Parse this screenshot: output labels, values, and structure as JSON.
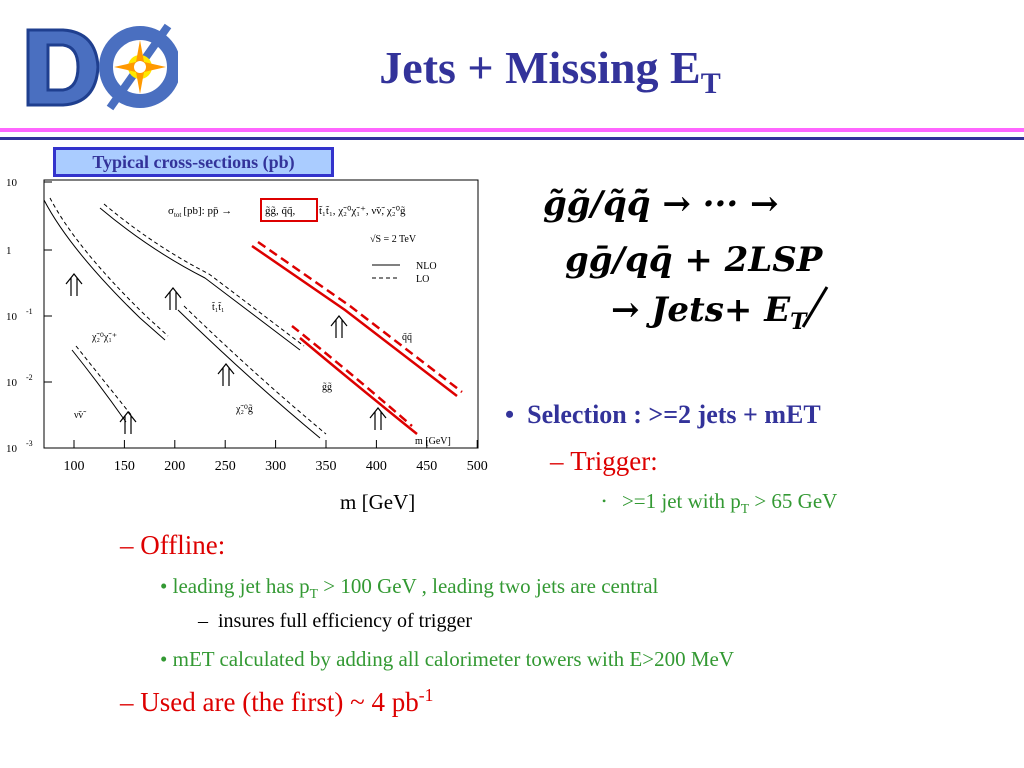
{
  "title": {
    "main": "Jets + Missing E",
    "sub": "T"
  },
  "logo": {
    "letters": "DØ"
  },
  "chart": {
    "box_label": "Typical cross-sections (pb)",
    "x_axis_title": "m [GeV]",
    "inner_x_label": "m [GeV]",
    "header": {
      "sigma": "σ",
      "sigma_sub": "tot",
      "unit": "[pb]: pp̄ →",
      "procs_boxed": "g̃g̃, q̃q̃,",
      "procs_rest": "t̃₁t̃₁, χ̃₂⁰χ̃₁⁺, ν̃ν̃, χ̃₂⁰g̃"
    },
    "energy": "√S = 2 TeV",
    "legend": [
      {
        "label": "NLO",
        "style": "solid"
      },
      {
        "label": "LO",
        "style": "dashed"
      }
    ],
    "x_ticks": [
      "100",
      "150",
      "200",
      "250",
      "300",
      "350",
      "400",
      "450",
      "500"
    ],
    "y_ticks": [
      {
        "base": "10",
        "exp": ""
      },
      {
        "base": "1",
        "exp": ""
      },
      {
        "base": "10",
        "exp": "-1"
      },
      {
        "base": "10",
        "exp": "-2"
      },
      {
        "base": "10",
        "exp": "-3"
      }
    ],
    "curve_labels": {
      "t1t1": "t̃₁t̃₁",
      "x2x1": "χ̃₂⁰χ̃₁⁺",
      "vv": "ν̃ν̃",
      "x2g": "χ̃₂⁰g̃",
      "gg": "g̃g̃",
      "qq": "q̃q̃"
    },
    "colors": {
      "highlight": "#dd0000",
      "frame": "#000000"
    }
  },
  "formula": {
    "line1": "g̃g̃/q̃q̄̃ → ··· →",
    "line2": "gḡ/qq̄ + 2LSP",
    "line3_a": "→ Jets+ ",
    "line3_b": "E",
    "line3_c": "T"
  },
  "bullets": {
    "selection": {
      "mark": "•",
      "text": "Selection : >=2 jets + mET"
    },
    "trigger": {
      "mark": "–",
      "text": "Trigger:"
    },
    "trigger_item": {
      "mark": "•",
      "pre": ">=1 jet with p",
      "sub": "T",
      "post": " > 65 GeV"
    },
    "offline": {
      "mark": "–",
      "text": "Offline:"
    },
    "offline_1": {
      "mark": "•",
      "pre": "leading jet has p",
      "sub": "T",
      "post": " > 100 GeV , leading two jets are central"
    },
    "offline_1a": {
      "mark": "–",
      "text": "insures full efficiency of trigger"
    },
    "offline_2": {
      "mark": "•",
      "text": "mET calculated by adding all calorimeter towers with E>200 MeV"
    },
    "used": {
      "mark": "–",
      "pre": "Used are (the first) ~ 4 pb",
      "sup": "-1"
    }
  }
}
